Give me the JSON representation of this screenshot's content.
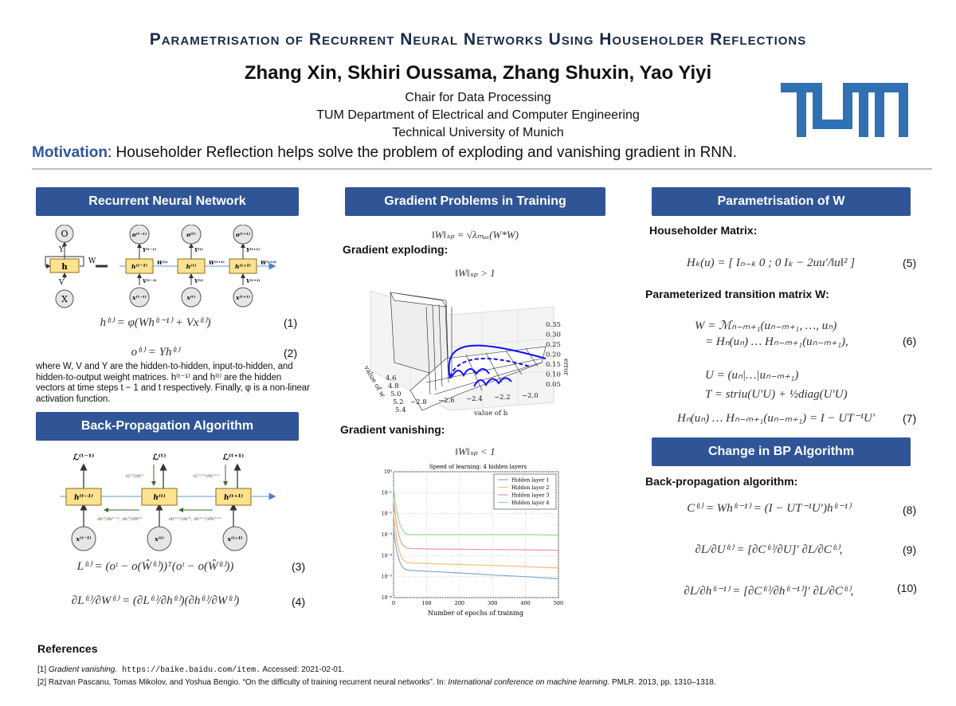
{
  "header": {
    "title": "Parametrisation of Recurrent Neural Networks Using Householder Reflections",
    "authors": "Zhang Xin, Skhiri Oussama, Zhang Shuxin, Yao Yiyi",
    "affiliation": [
      "Chair for Data Processing",
      "TUM Department of Electrical and Computer Engineering",
      "Technical University of Munich"
    ],
    "logo_text": "TUM",
    "motivation_label": "Motivation",
    "motivation_text": ": Householder Reflection helps solve the problem of exploding and vanishing gradient in RNN.",
    "brand_color": "#3070b3",
    "section_color": "#2f5597"
  },
  "rnn": {
    "title": "Recurrent Neural Network",
    "diagram": {
      "o": "O",
      "h": "h",
      "x": "X",
      "y": "Y",
      "v": "V",
      "w": "W",
      "cells": [
        {
          "o": "o⁽ᵗ⁻¹⁾",
          "y": "Y⁽ᵗ⁻¹⁾",
          "h": "h⁽ᵗ⁻¹⁾",
          "v": "V⁽ᵗ⁻¹⁾",
          "x": "x⁽ᵗ⁻¹⁾",
          "w": "W⁽ᵗ⁾"
        },
        {
          "o": "o⁽ᵗ⁾",
          "y": "Y⁽ᵗ⁾",
          "h": "h⁽ᵗ⁾",
          "v": "V⁽ᵗ⁾",
          "x": "x⁽ᵗ⁾",
          "w": "W⁽ᵗ⁺¹⁾"
        },
        {
          "o": "o⁽ᵗ⁺¹⁾",
          "y": "Y⁽ᵗ⁺¹⁾",
          "h": "h⁽ᵗ⁺¹⁾",
          "v": "V⁽ᵗ⁺¹⁾",
          "x": "x⁽ᵗ⁺¹⁾",
          "w": "W⁽ᵗ⁺²⁾"
        }
      ]
    },
    "eq1": "h⁽ᵗ⁾ = φ(Wh⁽ᵗ⁻¹⁾ + Vx⁽ᵗ⁾)",
    "eq1_num": "(1)",
    "eq2": "o⁽ᵗ⁾ = Yh⁽ᵗ⁾",
    "eq2_num": "(2)",
    "desc": "where W, V and Y are the hidden-to-hidden, input-to-hidden, and hidden-to-output weight matrices. h⁽ᵗ⁻¹⁾ and h⁽ᵗ⁾ are the hidden vectors at time steps t − 1 and t respectively. Finally, φ is a non-linear activation function."
  },
  "bp": {
    "title": "Back-Propagation Algorithm",
    "diagram": {
      "losses": [
        "ℒ⁽ᵗ⁻¹⁾",
        "ℒ⁽ᵗ⁾",
        "ℒ⁽ᵗ⁺¹⁾"
      ],
      "hs": [
        "h⁽ᵗ⁻¹⁾",
        "h⁽ᵗ⁾",
        "h⁽ᵗ⁺¹⁾"
      ],
      "xs": [
        "x⁽ᵗ⁻¹⁾",
        "x⁽ᵗ⁾",
        "x⁽ᵗ⁺¹⁾"
      ],
      "grad_l": [
        "∂ℒ⁽ᵗ⁾/∂h⁽ᵗ⁾",
        "∂ℒ⁽ᵗ⁺¹⁾/∂h⁽ᵗ⁺¹⁾"
      ],
      "grad_h": [
        "∂h⁽ᵗ⁾/∂h⁽ᵗ⁻¹⁾, ∂h⁽ᵗ⁾/∂W⁽ᵗ⁾",
        "∂h⁽ᵗ⁺¹⁾/∂h⁽ᵗ⁾, ∂h⁽ᵗ⁺¹⁾/∂W⁽ᵗ⁺¹⁾"
      ]
    },
    "eq3": "L⁽ᵗ⁾ = (oᵗ − o(Ŵ⁽ᵗ⁾))ᵀ(oᵗ − o(Ŵ⁽ᵗ⁾))",
    "eq3_num": "(3)",
    "eq4": "∂L⁽ᵗ⁾/∂W⁽ᵗ⁾ = (∂L⁽ᵗ⁾/∂h⁽ᵗ⁾)(∂h⁽ᵗ⁾/∂W⁽ᵗ⁾)",
    "eq4_num": "(4)"
  },
  "grad": {
    "title": "Gradient Problems in Training",
    "norm_def": "‖W‖ₛₚ = √λₘₐₓ(W*W)",
    "exploding_label": "Gradient exploding:",
    "exploding_cond": "‖W‖ₛₚ > 1",
    "surface": {
      "error_ticks": [
        "0.35",
        "0.30",
        "0.25",
        "0.20",
        "0.15",
        "0.10",
        "0.05"
      ],
      "error_label": "error",
      "b_ticks": [
        "−2.8",
        "−2.6",
        "−2.4",
        "−2.2",
        "−2.0"
      ],
      "b_label": "value of b",
      "w_ticks": [
        "4.6",
        "4.8",
        "5.0",
        "5.2",
        "5.4"
      ],
      "w_label": "value of w"
    },
    "vanishing_label": "Gradient vanishing:",
    "vanishing_cond": "‖W‖ₛₚ < 1"
  },
  "chart_data": {
    "type": "line",
    "title": "Speed of learning: 4 hidden layers",
    "xlabel": "Number of epochs of training",
    "ylabel": "",
    "xlim": [
      0,
      500
    ],
    "ylim": [
      1e-06,
      1
    ],
    "yscale": "log",
    "grid": true,
    "legend": "top-right",
    "xticks": [
      "0",
      "100",
      "200",
      "300",
      "400",
      "500"
    ],
    "yticks": [
      "10⁰",
      "10⁻¹",
      "10⁻²",
      "10⁻³",
      "10⁻⁴",
      "10⁻⁵",
      "10⁻⁶"
    ],
    "x": [
      0,
      25,
      50,
      100,
      200,
      300,
      400,
      500
    ],
    "series": [
      {
        "name": "Hidden layer 1",
        "color": "#7fa7c9",
        "values": [
          0.002,
          4e-05,
          2e-05,
          1.8e-05,
          1.5e-05,
          1.2e-05,
          1e-05,
          8e-06
        ]
      },
      {
        "name": "Hidden layer 2",
        "color": "#f0c070",
        "values": [
          0.01,
          0.0001,
          4.5e-05,
          4.2e-05,
          3.8e-05,
          3.4e-05,
          3e-05,
          2.6e-05
        ]
      },
      {
        "name": "Hidden layer 3",
        "color": "#e89a9a",
        "values": [
          0.05,
          0.0005,
          0.00022,
          0.00021,
          0.0002,
          0.000195,
          0.00019,
          0.00018
        ]
      },
      {
        "name": "Hidden layer 4",
        "color": "#90e090",
        "values": [
          0.2,
          0.003,
          0.001,
          0.001,
          0.001,
          0.001,
          0.001,
          0.00095
        ]
      }
    ]
  },
  "param": {
    "title": "Parametrisation of W",
    "householder_label": "Householder Matrix:",
    "eq5": "Hₖ(u) = [ Iₙ₋ₖ  0 ; 0  Iₖ − 2uu′/‖u‖² ]",
    "eq5_num": "(5)",
    "transition_label": "Parameterized transition matrix W:",
    "eq6a": "W = ℳₙ₋ₘ₊₁(uₙ₋ₘ₊₁, …, uₙ)",
    "eq6b": "= Hₙ(uₙ) … Hₙ₋ₘ₊₁(uₙ₋ₘ₊₁),",
    "eq6_num": "(6)",
    "eq7a": "U = (uₙ|…|uₙ₋ₘ₊₁)",
    "eq7b": "T = striu(U′U) + ½diag(U′U)",
    "eq7c": "Hₙ(uₙ) … Hₙ₋ₘ₊₁(uₙ₋ₘ₊₁) = I − UT⁻¹U′",
    "eq7_num": "(7)"
  },
  "change": {
    "title": "Change in BP Algorithm",
    "bp_label": "Back-propagation algorithm:",
    "eq8": "C⁽ᵗ⁾ = Wh⁽ᵗ⁻¹⁾ = (I − UT⁻¹U′)h⁽ᵗ⁻¹⁾",
    "eq8_num": "(8)",
    "eq9": "∂L/∂U⁽ᵗ⁾ = [∂C⁽ᵗ⁾/∂U]′ ∂L/∂C⁽ᵗ⁾,",
    "eq9_num": "(9)",
    "eq10": "∂L/∂h⁽ᵗ⁻¹⁾ = [∂C⁽ᵗ⁾/∂h⁽ᵗ⁻¹⁾]′ ∂L/∂C⁽ᵗ⁾,",
    "eq10_num": "(10)"
  },
  "references": {
    "title": "References",
    "items": [
      {
        "num": "[1]",
        "italic": "Gradient vanishing.",
        "mono": " https://baike.baidu.com/item.",
        "rest": " Accessed: 2021-02-01."
      },
      {
        "num": "[2]",
        "pre": " Razvan Pascanu, Tomas Mikolov, and Yoshua Bengio. “On the difficulty of training recurrent neural networks”. In: ",
        "italic": "International conference on machine learning.",
        "rest": " PMLR. 2013, pp. 1310–1318."
      }
    ]
  }
}
